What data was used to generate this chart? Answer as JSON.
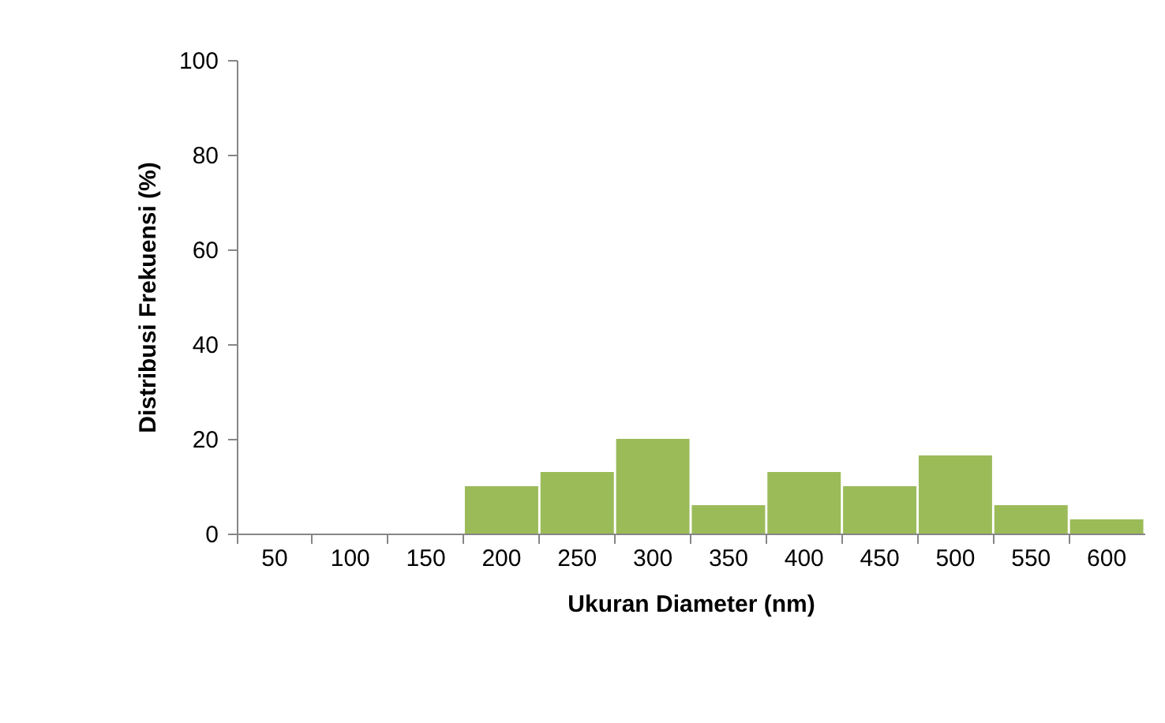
{
  "chart_data": {
    "type": "bar",
    "xlabel": "Ukuran Diameter (nm)",
    "ylabel": "Distribusi Frekuensi (%)",
    "categories": [
      "50",
      "100",
      "150",
      "200",
      "250",
      "300",
      "350",
      "400",
      "450",
      "500",
      "550",
      "600"
    ],
    "values": [
      0,
      0,
      0,
      10,
      13,
      20,
      6,
      13,
      10,
      16.5,
      6,
      3
    ],
    "color": "#9bbb59",
    "ylim": [
      0,
      100
    ],
    "yticks": [
      0,
      20,
      40,
      60,
      80,
      100
    ],
    "grid": false
  }
}
